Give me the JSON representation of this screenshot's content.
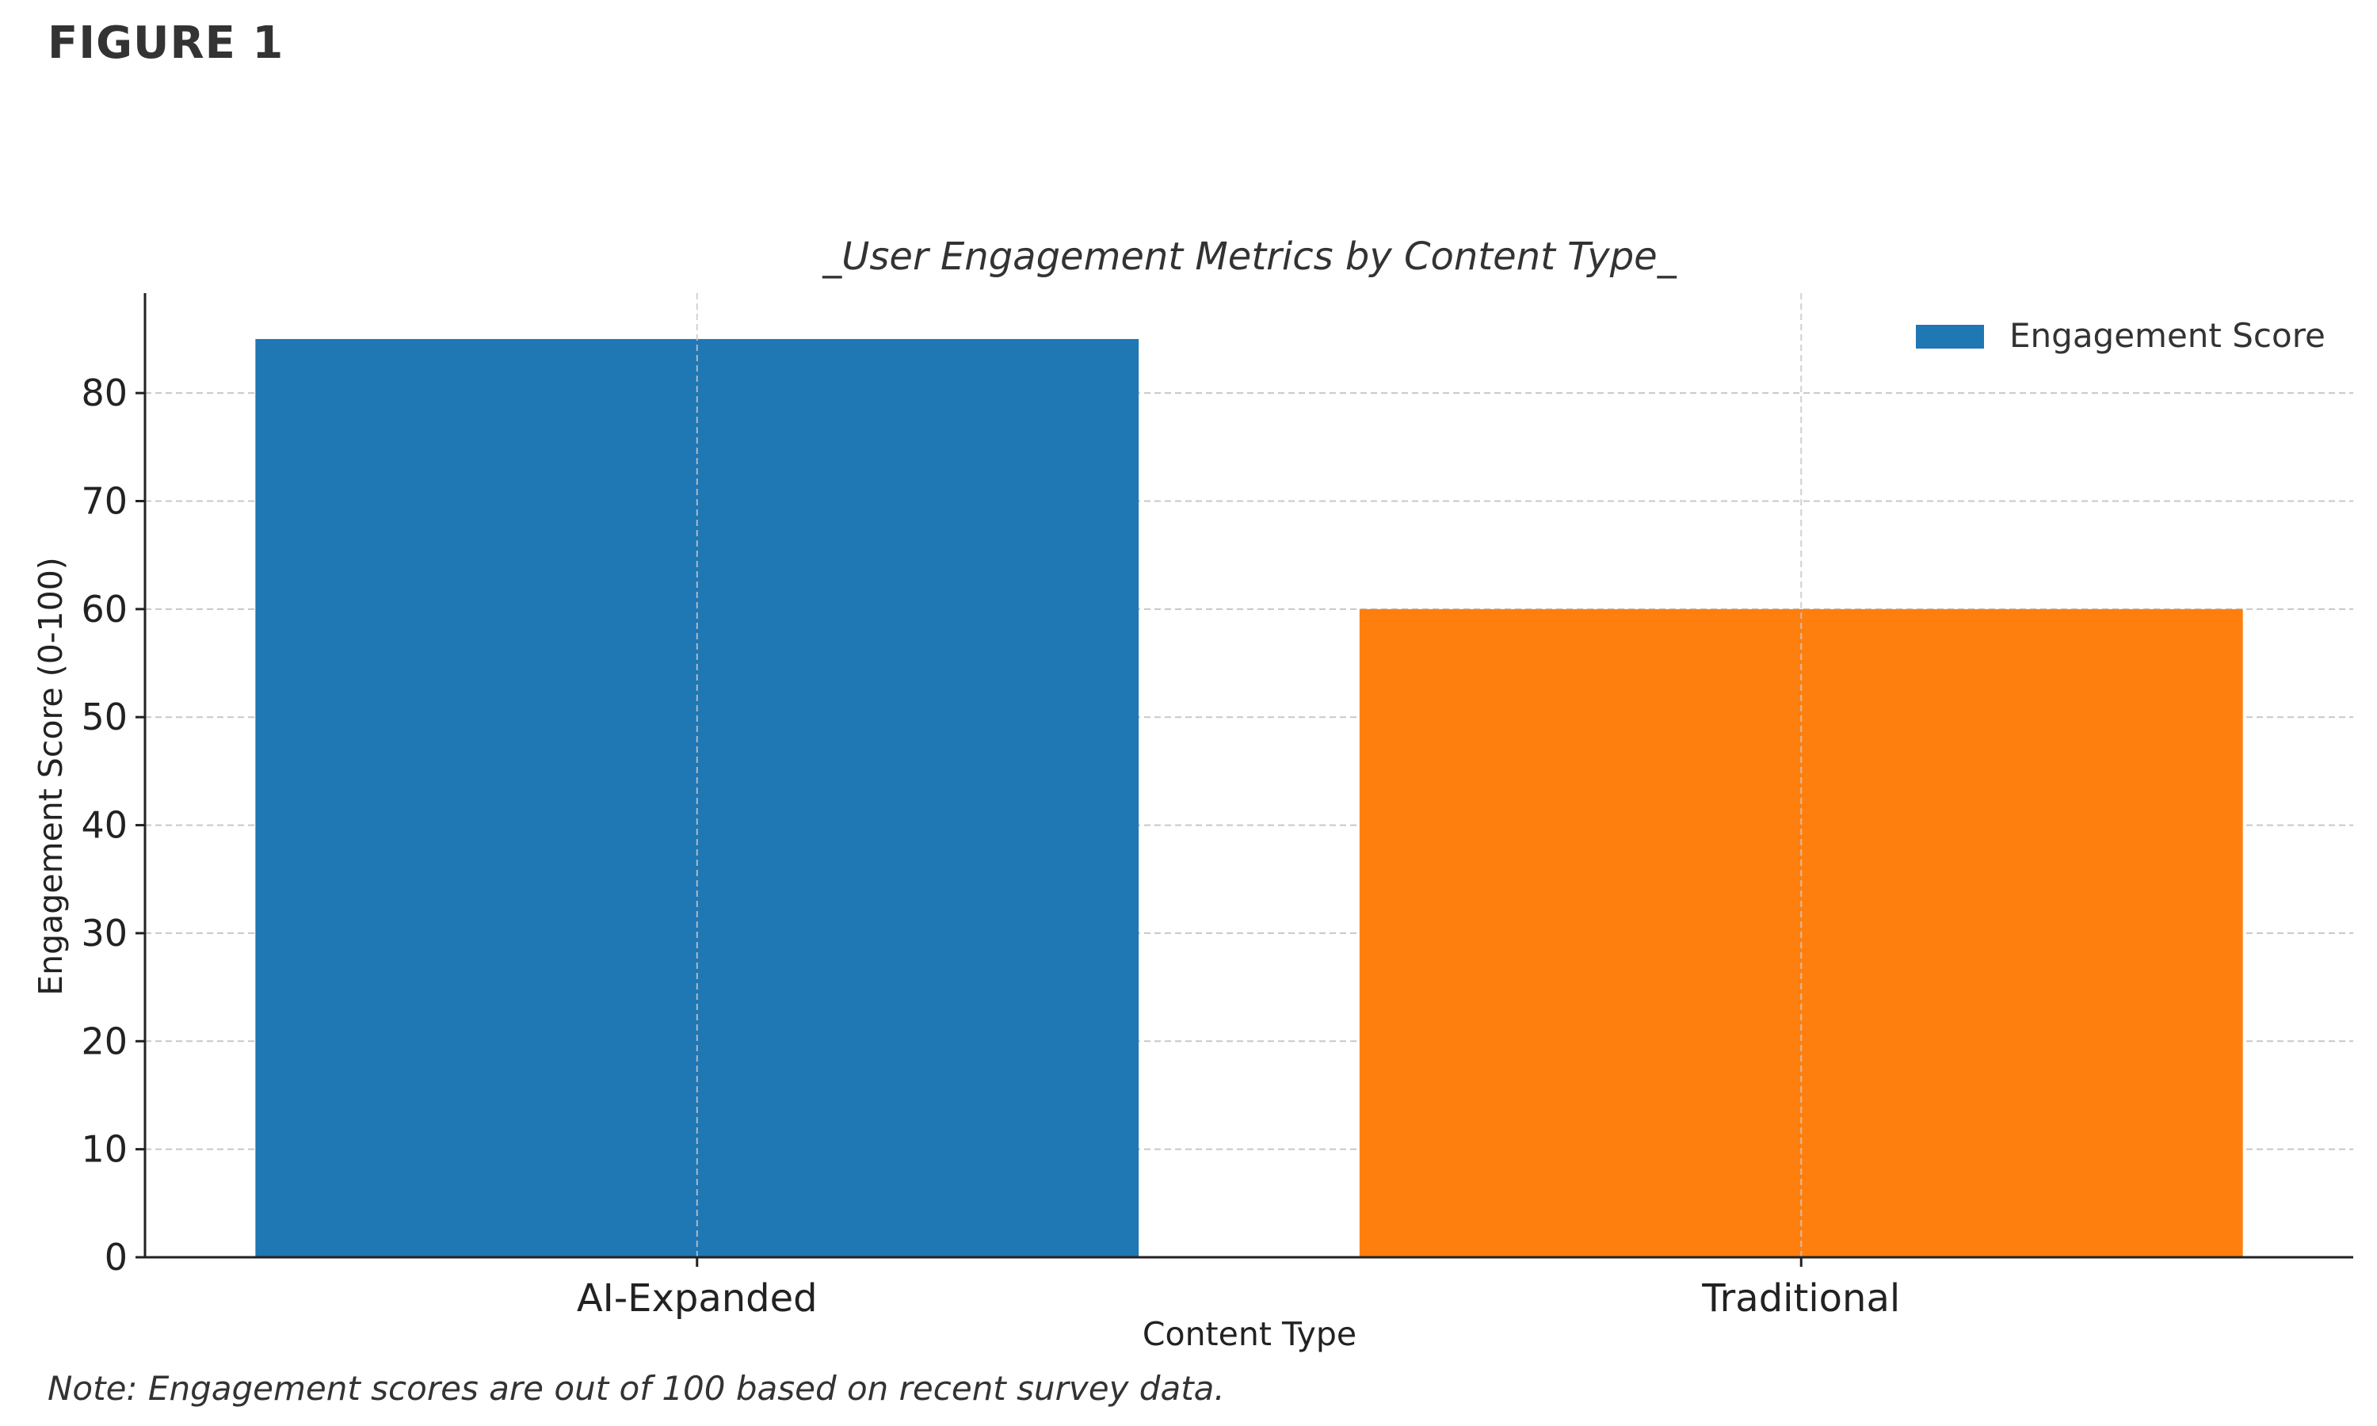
{
  "figure_label": "FIGURE 1",
  "note": "Note: Engagement scores are out of 100 based on recent survey data.",
  "chart_data": {
    "type": "bar",
    "title": "_User Engagement Metrics by Content Type_",
    "xlabel": "Content Type",
    "ylabel": "Engagement Score (0-100)",
    "categories": [
      "AI-Expanded",
      "Traditional"
    ],
    "series": [
      {
        "name": "Engagement Score",
        "values": [
          85,
          60
        ]
      }
    ],
    "bar_colors": [
      "#1f77b4",
      "#ff7f0e"
    ],
    "ylim": [
      0,
      89.25
    ],
    "yticks": [
      0,
      10,
      20,
      30,
      40,
      50,
      60,
      70,
      80
    ],
    "grid": true,
    "legend_position": "top-right"
  }
}
